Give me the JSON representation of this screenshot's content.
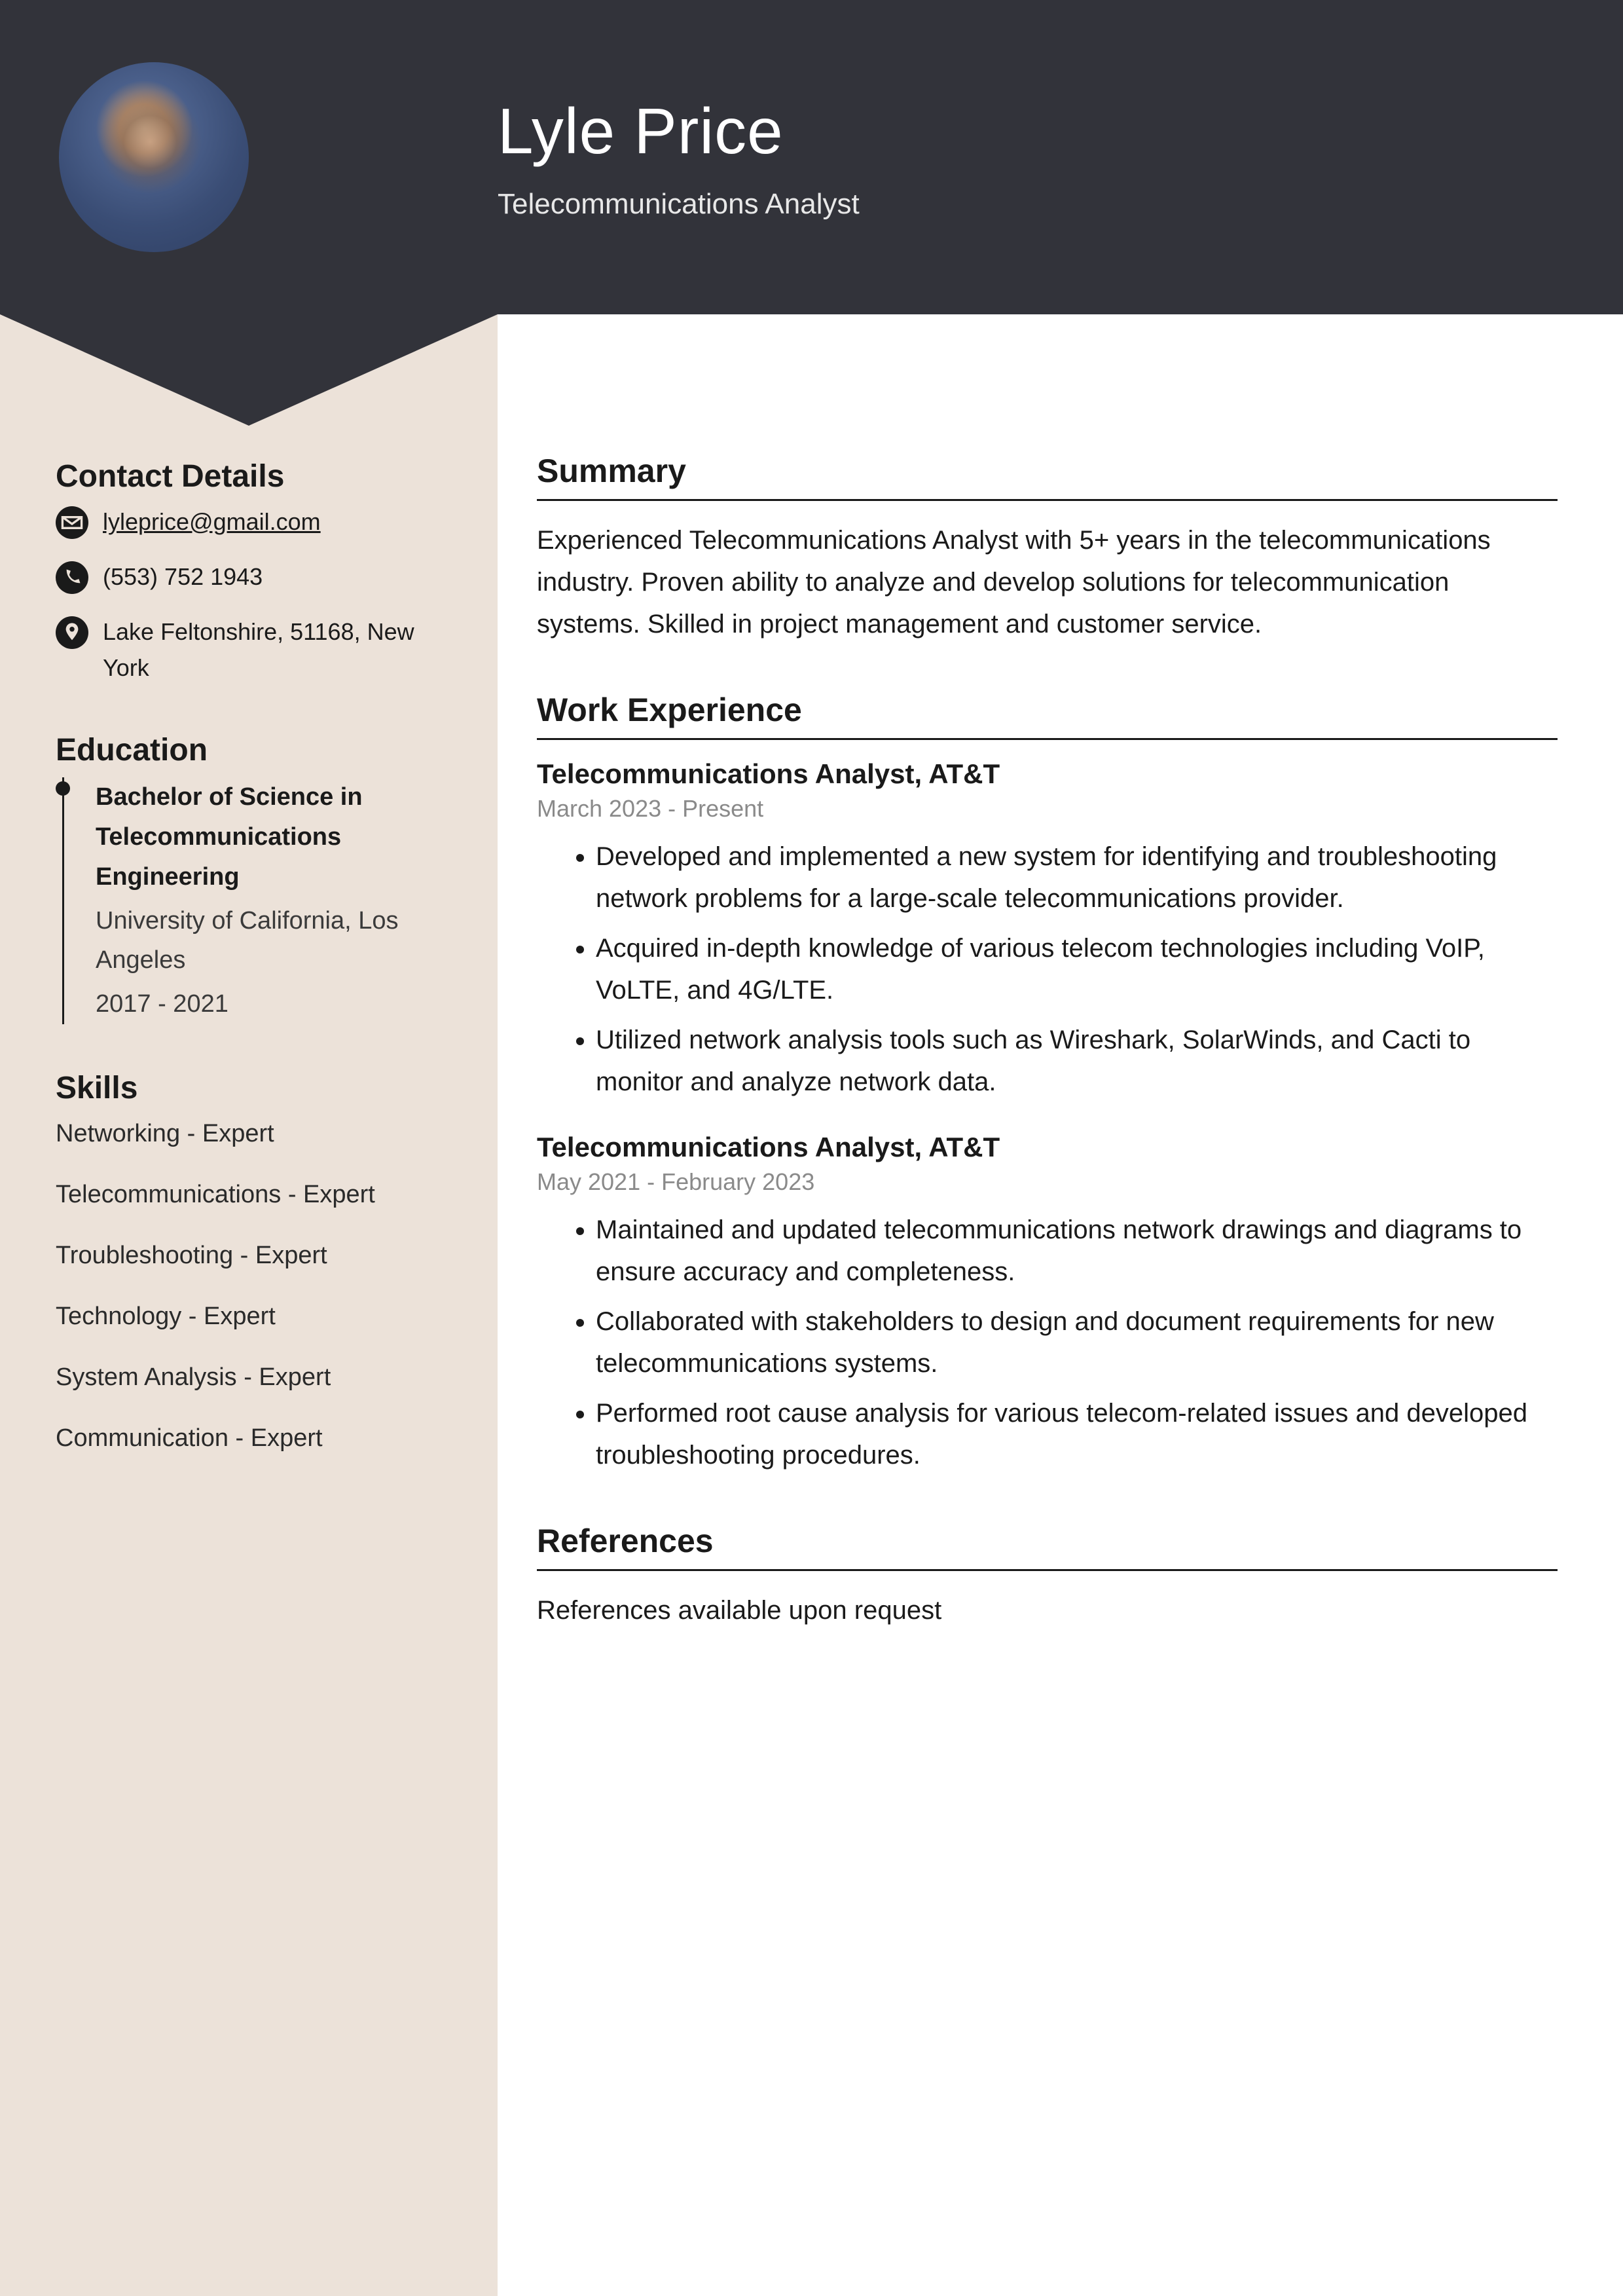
{
  "colors": {
    "header_bg": "#32333a",
    "sidebar_bg": "#ece2d9",
    "main_bg": "#ffffff",
    "text": "#1a1a1a",
    "muted": "#8a8a8a",
    "icon_fill": "#1a1a1a"
  },
  "header": {
    "name": "Lyle Price",
    "title": "Telecommunications Analyst"
  },
  "sidebar": {
    "contact": {
      "heading": "Contact Details",
      "email": "lyleprice@gmail.com",
      "phone": "(553) 752 1943",
      "address": "Lake Feltonshire, 51168, New York"
    },
    "education": {
      "heading": "Education",
      "items": [
        {
          "degree": "Bachelor of Science in Telecommunications Engineering",
          "school": "University of California, Los Angeles",
          "dates": "2017 - 2021"
        }
      ]
    },
    "skills": {
      "heading": "Skills",
      "items": [
        "Networking - Expert",
        "Telecommunications - Expert",
        "Troubleshooting - Expert",
        "Technology - Expert",
        "System Analysis - Expert",
        "Communication - Expert"
      ]
    }
  },
  "main": {
    "summary": {
      "heading": "Summary",
      "text": "Experienced Telecommunications Analyst with 5+ years in the telecommunications industry. Proven ability to analyze and develop solutions for telecommunication systems. Skilled in project management and customer service."
    },
    "work": {
      "heading": "Work Experience",
      "jobs": [
        {
          "title": "Telecommunications Analyst, AT&T",
          "dates": "March 2023 - Present",
          "bullets": [
            "Developed and implemented a new system for identifying and troubleshooting network problems for a large-scale telecommunications provider.",
            "Acquired in-depth knowledge of various telecom technologies including VoIP, VoLTE, and 4G/LTE.",
            "Utilized network analysis tools such as Wireshark, SolarWinds, and Cacti to monitor and analyze network data."
          ]
        },
        {
          "title": "Telecommunications Analyst, AT&T",
          "dates": "May 2021 - February 2023",
          "bullets": [
            "Maintained and updated telecommunications network drawings and diagrams to ensure accuracy and completeness.",
            "Collaborated with stakeholders to design and document requirements for new telecommunications systems.",
            "Performed root cause analysis for various telecom-related issues and developed troubleshooting procedures."
          ]
        }
      ]
    },
    "references": {
      "heading": "References",
      "text": "References available upon request"
    }
  }
}
